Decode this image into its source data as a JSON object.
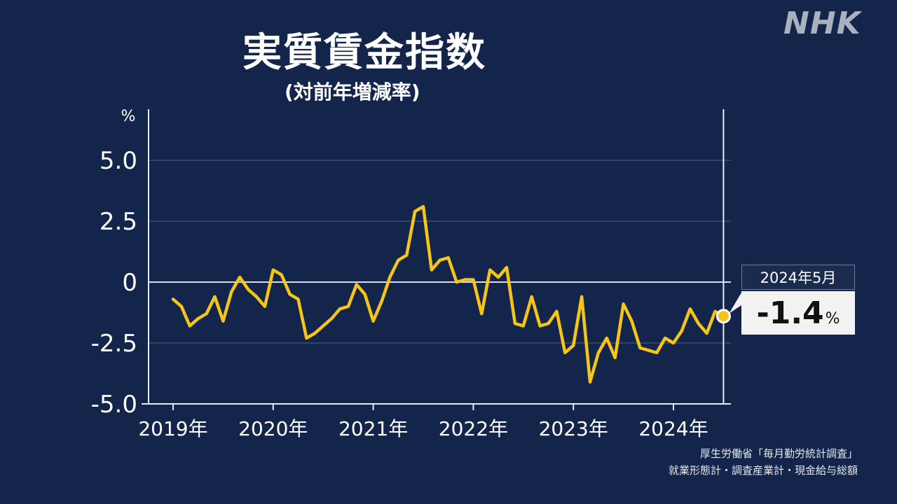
{
  "brand": "NHK",
  "callout": {
    "label": "2024年5月",
    "value": "-1.4",
    "unit": "%"
  },
  "source": {
    "line1": "厚生労働省「毎月勤労統計調査」",
    "line2": "就業形態計・調査産業計・現金給与総額"
  },
  "colors": {
    "background": "#13254a",
    "line": "#f5c518",
    "grid": "#3d4f70",
    "axis": "#e8ecf2"
  },
  "chart_data": {
    "type": "line",
    "title": "実質賃金指数",
    "subtitle": "(対前年増減率)",
    "ylabel": "%",
    "ylim": [
      -5.0,
      5.0
    ],
    "yticks": [
      5.0,
      2.5,
      0,
      -2.5,
      -5.0
    ],
    "ytick_labels": [
      "5.0",
      "2.5",
      "0",
      "-2.5",
      "-5.0"
    ],
    "xticks": [
      0,
      12,
      24,
      36,
      48,
      60
    ],
    "xtick_labels": [
      "2019年",
      "2020年",
      "2021年",
      "2022年",
      "2023年",
      "2024年"
    ],
    "grid": true,
    "series": [
      {
        "values": [
          -0.7,
          -1.0,
          -1.8,
          -1.5,
          -1.3,
          -0.6,
          -1.6,
          -0.4,
          0.2,
          -0.3,
          -0.6,
          -1.0,
          0.5,
          0.3,
          -0.5,
          -0.7,
          -2.3,
          -2.1,
          -1.8,
          -1.5,
          -1.1,
          -1.0,
          -0.1,
          -0.5,
          -1.6,
          -0.8,
          0.2,
          0.9,
          1.1,
          2.9,
          3.1,
          0.5,
          0.9,
          1.0,
          0.0,
          0.1,
          0.1,
          -1.3,
          0.5,
          0.2,
          0.6,
          -1.7,
          -1.8,
          -0.6,
          -1.8,
          -1.7,
          -1.2,
          -2.9,
          -2.6,
          -0.6,
          -4.1,
          -2.9,
          -2.3,
          -3.1,
          -0.9,
          -1.6,
          -2.7,
          -2.8,
          -2.9,
          -2.3,
          -2.5,
          -2.0,
          -1.1,
          -1.7,
          -2.1,
          -1.2,
          -1.4
        ]
      }
    ]
  }
}
